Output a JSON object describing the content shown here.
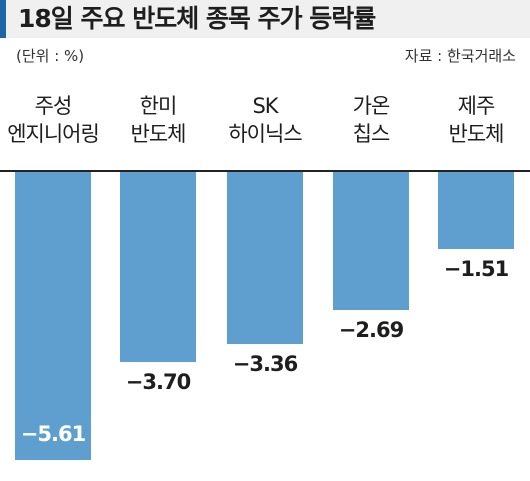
{
  "chart_data": {
    "type": "bar",
    "title": "18일 주요 반도체 종목 주가 등락률",
    "unit_note": "(단위 : %)",
    "source": "자료 : 한국거래소",
    "categories": [
      [
        "주성",
        "엔지니어링"
      ],
      [
        "한미",
        "반도체"
      ],
      [
        "SK",
        "하이닉스"
      ],
      [
        "가온",
        "칩스"
      ],
      [
        "제주",
        "반도체"
      ]
    ],
    "values": [
      -5.61,
      -3.7,
      -3.36,
      -2.69,
      -1.51
    ],
    "value_labels": [
      "−5.61",
      "−3.70",
      "−3.36",
      "−2.69",
      "−1.51"
    ],
    "ylim": [
      -5.61,
      0
    ],
    "grid": false,
    "bar_color": "#5f9fd0",
    "accent_color": "#1f66a6"
  }
}
